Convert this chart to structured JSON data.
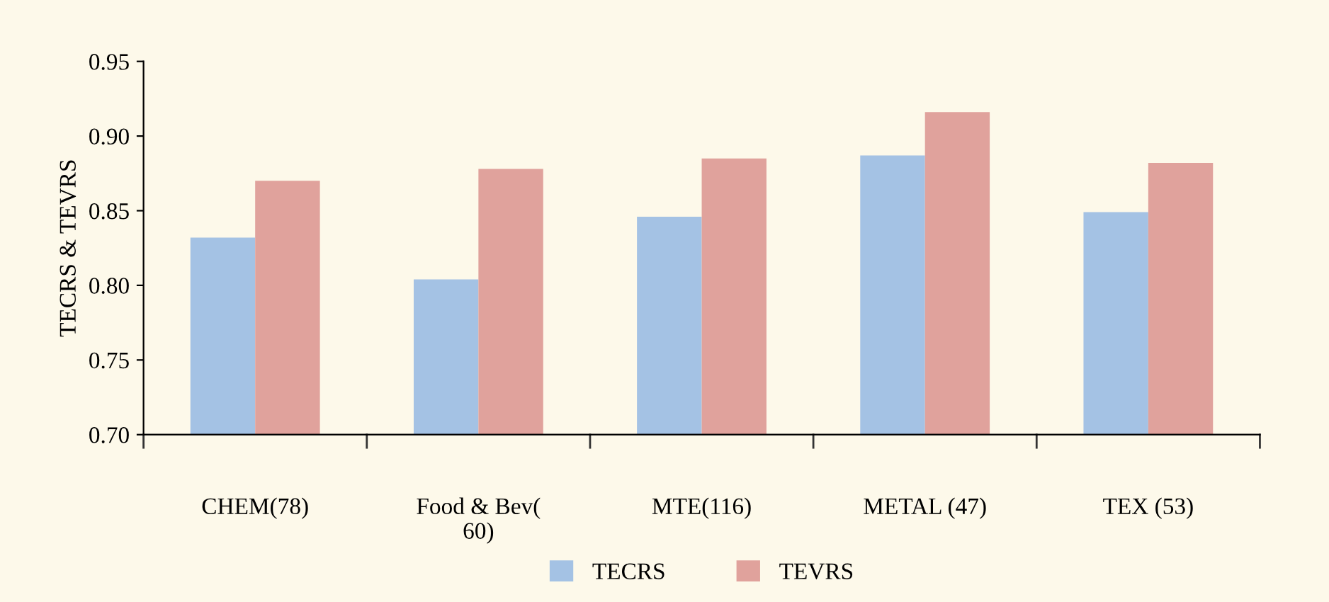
{
  "chart_data": {
    "type": "bar",
    "ylabel": "TECRS & TEVRS",
    "categories": [
      "CHEM(78)",
      "Food & Bev(\n60)",
      "MTE(116)",
      "METAL (47)",
      "TEX (53)"
    ],
    "series": [
      {
        "name": "TECRS",
        "color": "#a4c2e4",
        "values": [
          0.832,
          0.804,
          0.846,
          0.887,
          0.849
        ]
      },
      {
        "name": "TEVRS",
        "color": "#e0a29c",
        "values": [
          0.87,
          0.878,
          0.885,
          0.916,
          0.882
        ]
      }
    ],
    "ylim": [
      0.7,
      0.95
    ],
    "yticks": [
      {
        "value": 0.7,
        "label": "0.70"
      },
      {
        "value": 0.75,
        "label": "0.75"
      },
      {
        "value": 0.8,
        "label": "0.80"
      },
      {
        "value": 0.85,
        "label": "0.85"
      },
      {
        "value": 0.9,
        "label": "0.90"
      },
      {
        "value": 0.95,
        "label": "0.95"
      }
    ],
    "grid": false,
    "legend": "bottom"
  }
}
